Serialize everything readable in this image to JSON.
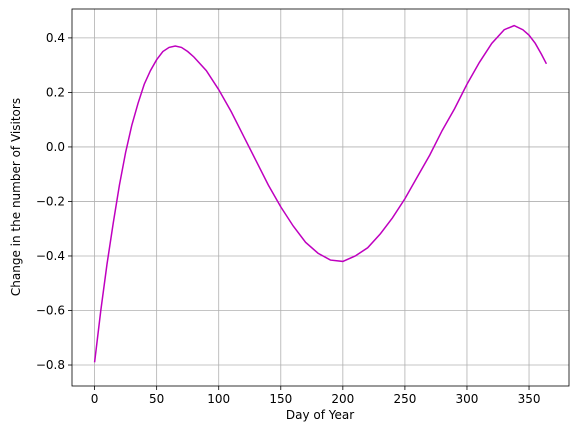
{
  "chart_data": {
    "type": "line",
    "xlabel": "Day of Year",
    "ylabel": "Change in the number of Visitors",
    "x": [
      0,
      5,
      10,
      15,
      20,
      25,
      30,
      35,
      40,
      45,
      50,
      55,
      60,
      65,
      70,
      75,
      80,
      90,
      100,
      110,
      120,
      130,
      140,
      150,
      160,
      170,
      180,
      190,
      200,
      210,
      220,
      230,
      240,
      250,
      260,
      270,
      280,
      290,
      300,
      310,
      320,
      330,
      338,
      345,
      350,
      355,
      360,
      364
    ],
    "series": [
      {
        "color": "#bf00bf",
        "values": [
          -0.79,
          -0.6,
          -0.43,
          -0.28,
          -0.14,
          -0.02,
          0.08,
          0.16,
          0.23,
          0.28,
          0.32,
          0.35,
          0.365,
          0.37,
          0.365,
          0.35,
          0.33,
          0.28,
          0.21,
          0.13,
          0.04,
          -0.05,
          -0.14,
          -0.22,
          -0.29,
          -0.35,
          -0.39,
          -0.415,
          -0.42,
          -0.4,
          -0.37,
          -0.32,
          -0.26,
          -0.19,
          -0.11,
          -0.03,
          0.06,
          0.14,
          0.23,
          0.31,
          0.38,
          0.43,
          0.445,
          0.43,
          0.41,
          0.38,
          0.34,
          0.305
        ]
      }
    ],
    "xlim": [
      -18.2,
      382.2
    ],
    "ylim": [
      -0.877,
      0.506
    ],
    "xticks": [
      0,
      50,
      100,
      150,
      200,
      250,
      300,
      350
    ],
    "yticks": [
      {
        "value": -0.8,
        "label": "−0.8"
      },
      {
        "value": -0.6,
        "label": "−0.6"
      },
      {
        "value": -0.4,
        "label": "−0.4"
      },
      {
        "value": -0.2,
        "label": "−0.2"
      },
      {
        "value": 0.0,
        "label": "0.0"
      },
      0.2,
      0.4
    ],
    "grid": true
  }
}
